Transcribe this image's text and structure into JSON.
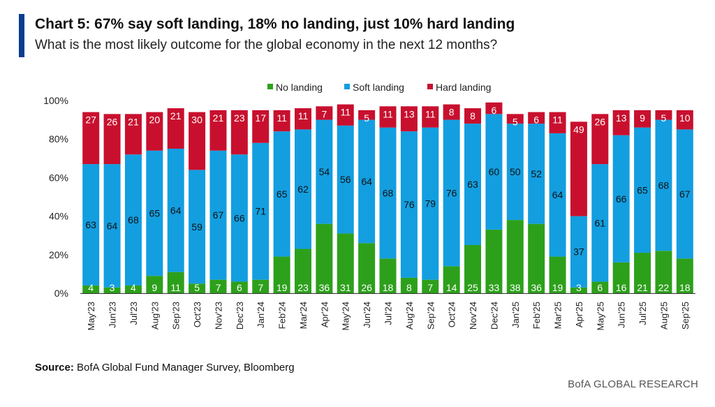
{
  "header": {
    "title": "Chart 5: 67% say soft landing, 18% no landing, just 10% hard landing",
    "subtitle": "What is the most likely outcome for the global economy in the next 12 months?",
    "accent_color": "#0a3d91"
  },
  "footer": {
    "source_label": "Source:",
    "source_text": "BofA Global Fund Manager Survey, Bloomberg",
    "brand": "BofA GLOBAL RESEARCH"
  },
  "chart_data": {
    "type": "bar",
    "stacked": true,
    "legend_position": "top",
    "grid": false,
    "ylim": [
      0,
      100
    ],
    "yticks": [
      "0%",
      "20%",
      "40%",
      "60%",
      "80%",
      "100%"
    ],
    "categories": [
      "May'23",
      "Jun'23",
      "Jul'23",
      "Aug'23",
      "Sep'23",
      "Oct'23",
      "Nov'23",
      "Dec'23",
      "Jan'24",
      "Feb'24",
      "Mar'24",
      "Apr'24",
      "May'24",
      "Jun'24",
      "Jul'24",
      "Aug'24",
      "Sep'24",
      "Oct'24",
      "Nov'24",
      "Dec'24",
      "Jan'25",
      "Feb'25",
      "Mar'25",
      "Apr'25",
      "May'25",
      "Jun'25",
      "Jul'25",
      "Aug'25",
      "Sep'25"
    ],
    "series": [
      {
        "name": "No landing",
        "color": "#2da01b",
        "values": [
          4,
          3,
          4,
          9,
          11,
          5,
          7,
          6,
          7,
          19,
          23,
          36,
          31,
          26,
          18,
          8,
          7,
          14,
          25,
          33,
          38,
          36,
          19,
          3,
          6,
          16,
          21,
          22,
          18
        ]
      },
      {
        "name": "Soft landing",
        "color": "#139ee0",
        "values": [
          63,
          64,
          68,
          65,
          64,
          59,
          67,
          66,
          71,
          65,
          62,
          54,
          56,
          64,
          68,
          76,
          79,
          76,
          63,
          60,
          50,
          52,
          64,
          37,
          61,
          66,
          65,
          68,
          67
        ]
      },
      {
        "name": "Hard landing",
        "color": "#c8102e",
        "values": [
          27,
          26,
          21,
          20,
          21,
          30,
          21,
          23,
          17,
          11,
          11,
          7,
          11,
          5,
          11,
          13,
          11,
          8,
          8,
          6,
          5,
          6,
          11,
          49,
          26,
          13,
          9,
          5,
          10
        ]
      }
    ]
  }
}
